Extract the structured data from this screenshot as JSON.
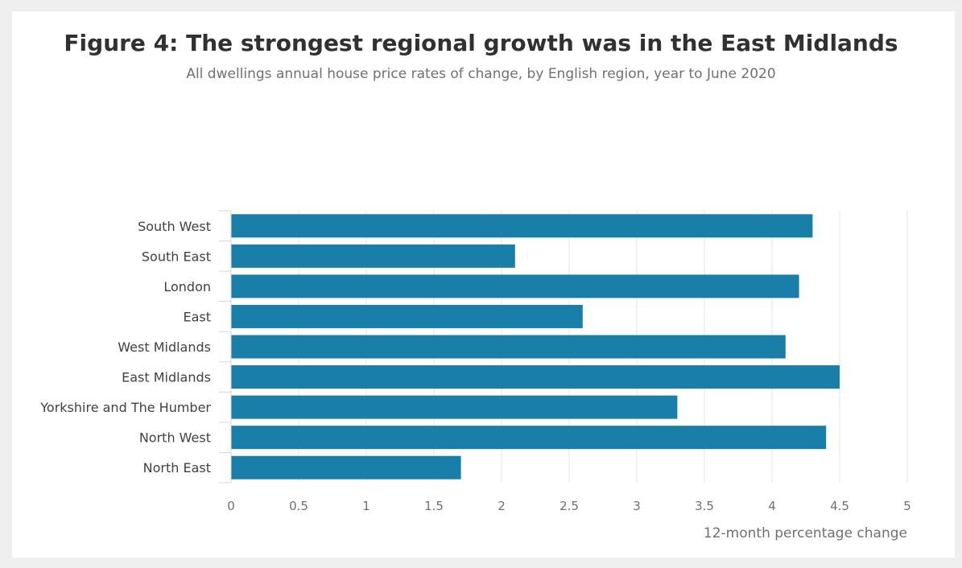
{
  "chart_data": {
    "type": "bar",
    "orientation": "horizontal",
    "title": "Figure 4: The strongest regional growth was in the East Midlands",
    "subtitle": "All dwellings annual house price rates of change, by English region, year to June 2020",
    "xlabel": "12-month percentage change",
    "ylabel": "",
    "categories": [
      "South West",
      "South East",
      "London",
      "East",
      "West Midlands",
      "East Midlands",
      "Yorkshire and The Humber",
      "North West",
      "North East"
    ],
    "values": [
      4.3,
      2.1,
      4.2,
      2.6,
      4.1,
      4.5,
      3.3,
      4.4,
      1.7
    ],
    "xlim": [
      0,
      5
    ],
    "xticks": [
      "0",
      "0.5",
      "1",
      "1.5",
      "2",
      "2.5",
      "3",
      "3.5",
      "4",
      "4.5",
      "5"
    ],
    "grid": true,
    "bar_color": "#1a7fa8"
  }
}
